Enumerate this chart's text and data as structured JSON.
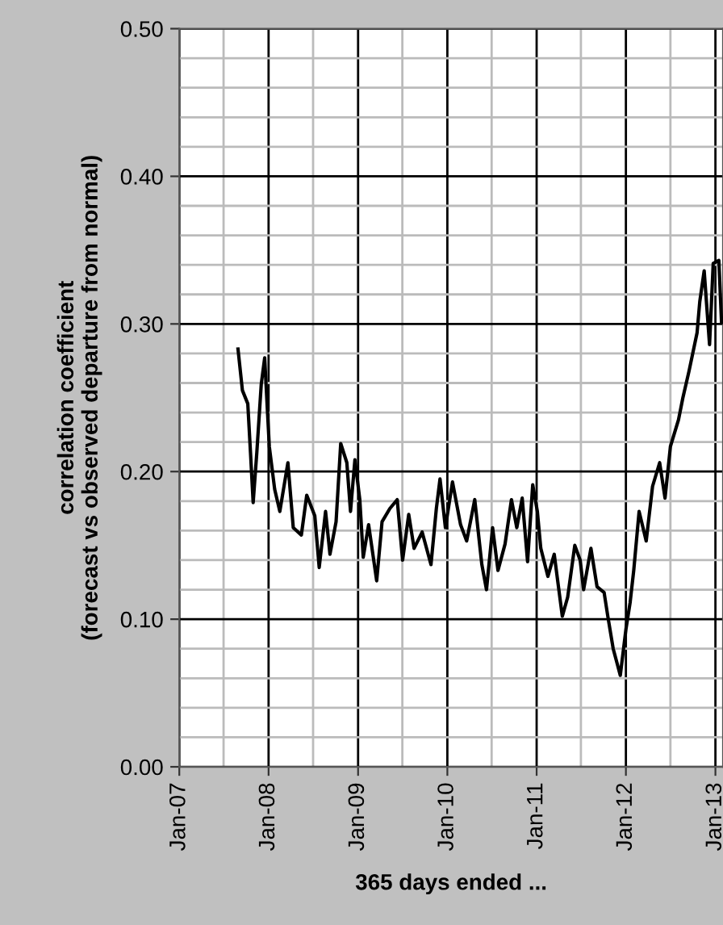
{
  "chart_data": {
    "type": "line",
    "xlabel": "365 days ended ...",
    "ylabel": "correlation coefficient\n(forecast vs observed departure from normal)",
    "x": [
      "2007-08-29",
      "2007-09-16",
      "2007-10-08",
      "2007-10-19",
      "2007-10-30",
      "2007-11-14",
      "2007-12-02",
      "2007-12-16",
      "2008-01-04",
      "2008-01-26",
      "2008-02-16",
      "2008-03-20",
      "2008-04-11",
      "2008-05-14",
      "2008-06-05",
      "2008-07-08",
      "2008-07-26",
      "2008-08-21",
      "2008-09-08",
      "2008-10-03",
      "2008-10-22",
      "2008-11-16",
      "2008-12-01",
      "2008-12-19",
      "2009-01-08",
      "2009-01-22",
      "2009-02-13",
      "2009-03-18",
      "2009-04-09",
      "2009-05-11",
      "2009-06-10",
      "2009-07-02",
      "2009-07-27",
      "2009-08-18",
      "2009-09-20",
      "2009-10-26",
      "2009-11-17",
      "2009-12-02",
      "2009-12-24",
      "2010-01-22",
      "2010-02-24",
      "2010-03-21",
      "2010-04-23",
      "2010-05-22",
      "2010-06-10",
      "2010-07-05",
      "2010-07-27",
      "2010-08-25",
      "2010-09-20",
      "2010-10-12",
      "2010-11-03",
      "2010-11-25",
      "2010-12-16",
      "2011-01-04",
      "2011-01-18",
      "2011-02-16",
      "2011-03-14",
      "2011-04-16",
      "2011-05-08",
      "2011-06-06",
      "2011-06-28",
      "2011-07-12",
      "2011-08-11",
      "2011-09-05",
      "2011-10-04",
      "2011-10-19",
      "2011-11-10",
      "2011-12-09",
      "2012-01-01",
      "2012-01-18",
      "2012-02-02",
      "2012-02-24",
      "2012-03-24",
      "2012-04-19",
      "2012-05-18",
      "2012-06-09",
      "2012-07-01",
      "2012-08-03",
      "2012-08-21",
      "2012-09-15",
      "2012-10-18",
      "2012-10-29",
      "2012-11-16",
      "2012-12-08",
      "2012-12-23",
      "2013-01-15",
      "2013-01-26"
    ],
    "series": [
      {
        "color": "#000000",
        "values": [
          0.283,
          0.255,
          0.246,
          0.213,
          0.179,
          0.213,
          0.259,
          0.277,
          0.217,
          0.188,
          0.173,
          0.206,
          0.162,
          0.157,
          0.184,
          0.17,
          0.135,
          0.173,
          0.144,
          0.166,
          0.219,
          0.206,
          0.173,
          0.208,
          0.181,
          0.142,
          0.164,
          0.126,
          0.166,
          0.175,
          0.181,
          0.14,
          0.171,
          0.148,
          0.159,
          0.137,
          0.175,
          0.195,
          0.162,
          0.193,
          0.164,
          0.153,
          0.181,
          0.137,
          0.12,
          0.162,
          0.133,
          0.151,
          0.181,
          0.162,
          0.182,
          0.139,
          0.191,
          0.173,
          0.148,
          0.129,
          0.144,
          0.102,
          0.115,
          0.15,
          0.14,
          0.12,
          0.148,
          0.122,
          0.118,
          0.102,
          0.08,
          0.062,
          0.093,
          0.111,
          0.133,
          0.173,
          0.153,
          0.19,
          0.206,
          0.182,
          0.217,
          0.235,
          0.25,
          0.268,
          0.294,
          0.315,
          0.336,
          0.286,
          0.341,
          0.343,
          0.301
        ]
      }
    ],
    "xlim": [
      "2007-01-01",
      "2013-02-01"
    ],
    "xticks": [
      {
        "value": "2007-01-01",
        "label": "Jan-07"
      },
      {
        "value": "2007-07-01",
        "label": null
      },
      {
        "value": "2008-01-01",
        "label": "Jan-08"
      },
      {
        "value": "2008-07-01",
        "label": null
      },
      {
        "value": "2009-01-01",
        "label": "Jan-09"
      },
      {
        "value": "2009-07-01",
        "label": null
      },
      {
        "value": "2010-01-01",
        "label": "Jan-10"
      },
      {
        "value": "2010-07-01",
        "label": null
      },
      {
        "value": "2011-01-01",
        "label": "Jan-11"
      },
      {
        "value": "2011-07-01",
        "label": null
      },
      {
        "value": "2012-01-01",
        "label": "Jan-12"
      },
      {
        "value": "2012-07-01",
        "label": null
      },
      {
        "value": "2013-01-01",
        "label": "Jan-13"
      }
    ],
    "ylim": [
      0,
      0.5
    ],
    "yticks": [
      {
        "value": 0,
        "label": "0.00"
      },
      {
        "value": 0.02,
        "label": null
      },
      {
        "value": 0.04,
        "label": null
      },
      {
        "value": 0.06,
        "label": null
      },
      {
        "value": 0.08,
        "label": null
      },
      {
        "value": 0.1,
        "label": "0.10"
      },
      {
        "value": 0.12,
        "label": null
      },
      {
        "value": 0.14,
        "label": null
      },
      {
        "value": 0.16,
        "label": null
      },
      {
        "value": 0.18,
        "label": null
      },
      {
        "value": 0.2,
        "label": "0.20"
      },
      {
        "value": 0.22,
        "label": null
      },
      {
        "value": 0.24,
        "label": null
      },
      {
        "value": 0.26,
        "label": null
      },
      {
        "value": 0.28,
        "label": null
      },
      {
        "value": 0.3,
        "label": "0.30"
      },
      {
        "value": 0.32,
        "label": null
      },
      {
        "value": 0.34,
        "label": null
      },
      {
        "value": 0.36,
        "label": null
      },
      {
        "value": 0.38,
        "label": null
      },
      {
        "value": 0.4,
        "label": "0.40"
      },
      {
        "value": 0.42,
        "label": null
      },
      {
        "value": 0.44,
        "label": null
      },
      {
        "value": 0.46,
        "label": null
      },
      {
        "value": 0.48,
        "label": null
      },
      {
        "value": 0.5,
        "label": "0.50"
      }
    ],
    "grid": true,
    "legend": false,
    "marker": "none",
    "line_style": "solid"
  }
}
